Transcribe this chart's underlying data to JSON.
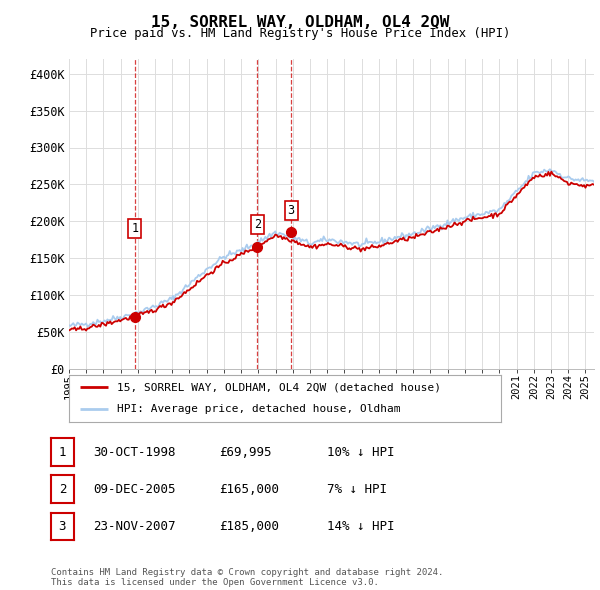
{
  "title": "15, SORREL WAY, OLDHAM, OL4 2QW",
  "subtitle": "Price paid vs. HM Land Registry's House Price Index (HPI)",
  "xlim_start": 1995.0,
  "xlim_end": 2025.5,
  "ylim": [
    0,
    420000
  ],
  "yticks": [
    0,
    50000,
    100000,
    150000,
    200000,
    250000,
    300000,
    350000,
    400000
  ],
  "ytick_labels": [
    "£0",
    "£50K",
    "£100K",
    "£150K",
    "£200K",
    "£250K",
    "£300K",
    "£350K",
    "£400K"
  ],
  "sales": [
    {
      "num": 1,
      "date_x": 1998.83,
      "price": 69995,
      "label": "1"
    },
    {
      "num": 2,
      "date_x": 2005.94,
      "price": 165000,
      "label": "2"
    },
    {
      "num": 3,
      "date_x": 2007.9,
      "price": 185000,
      "label": "3"
    }
  ],
  "table_rows": [
    {
      "num": "1",
      "date": "30-OCT-1998",
      "price": "£69,995",
      "hpi": "10% ↓ HPI"
    },
    {
      "num": "2",
      "date": "09-DEC-2005",
      "price": "£165,000",
      "hpi": "7% ↓ HPI"
    },
    {
      "num": "3",
      "date": "23-NOV-2007",
      "price": "£185,000",
      "hpi": "14% ↓ HPI"
    }
  ],
  "legend_sale_label": "15, SORREL WAY, OLDHAM, OL4 2QW (detached house)",
  "legend_hpi_label": "HPI: Average price, detached house, Oldham",
  "footer": "Contains HM Land Registry data © Crown copyright and database right 2024.\nThis data is licensed under the Open Government Licence v3.0.",
  "sale_color": "#cc0000",
  "hpi_color": "#aaccee",
  "background_color": "#ffffff",
  "grid_color": "#dddddd",
  "hpi_years": [
    1995,
    1996,
    1997,
    1998,
    1999,
    2000,
    2001,
    2002,
    2003,
    2004,
    2005,
    2006,
    2007,
    2008,
    2009,
    2010,
    2011,
    2012,
    2013,
    2014,
    2015,
    2016,
    2017,
    2018,
    2019,
    2020,
    2021,
    2022,
    2023,
    2024,
    2025
  ],
  "hpi_prices": [
    58000,
    61000,
    65000,
    70000,
    76000,
    85000,
    95000,
    115000,
    135000,
    152000,
    160000,
    172000,
    185000,
    178000,
    170000,
    175000,
    172000,
    168000,
    172000,
    178000,
    183000,
    190000,
    198000,
    205000,
    210000,
    215000,
    240000,
    265000,
    270000,
    258000,
    255000
  ],
  "sale_years": [
    1995,
    1996,
    1997,
    1998,
    1999,
    2000,
    2001,
    2002,
    2003,
    2004,
    2005,
    2006,
    2007,
    2008,
    2009,
    2010,
    2011,
    2012,
    2013,
    2014,
    2015,
    2016,
    2017,
    2018,
    2019,
    2020,
    2021,
    2022,
    2023,
    2024,
    2025
  ],
  "sale_prices": [
    52000,
    55000,
    60000,
    66000,
    72000,
    80000,
    90000,
    108000,
    127000,
    143000,
    155000,
    167000,
    181000,
    174000,
    165000,
    169000,
    166000,
    162000,
    166000,
    173000,
    178000,
    185000,
    193000,
    200000,
    205000,
    210000,
    235000,
    260000,
    265000,
    252000,
    248000
  ]
}
